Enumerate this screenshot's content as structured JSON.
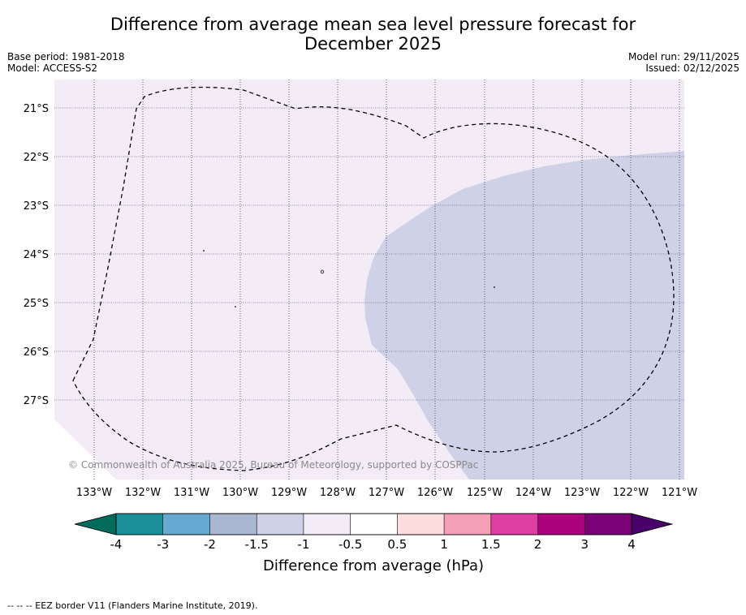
{
  "title_line1": "Difference from average mean sea level pressure forecast for",
  "title_line2": "December 2025",
  "base_period": "Base period: 1981-2018",
  "model": "Model: ACCESS-S2",
  "model_run": "Model run: 29/11/2025",
  "issued": "Issued: 02/12/2025",
  "lat_labels": [
    "21°S",
    "22°S",
    "23°S",
    "24°S",
    "25°S",
    "26°S",
    "27°S"
  ],
  "lon_labels": [
    "133°W",
    "132°W",
    "131°W",
    "130°W",
    "129°W",
    "128°W",
    "127°W",
    "126°W",
    "125°W",
    "124°W",
    "123°W",
    "122°W",
    "121°W"
  ],
  "copyright": "© Commonwealth of Australia 2025, Bureau of Meteorology, supported by COSPPac",
  "colorbar": {
    "label": "Difference from average (hPa)",
    "ticks": [
      "-4",
      "-3",
      "-2",
      "-1.5",
      "-1",
      "-0.5",
      "0.5",
      "1",
      "1.5",
      "2",
      "3",
      "4"
    ],
    "colors": [
      "#1b9099",
      "#67aad1",
      "#a9b7d1",
      "#cfd1e6",
      "#f3ecf6",
      "#ffffff",
      "#fdddde",
      "#f69fb9",
      "#de3ea1",
      "#ad017e",
      "#7a0177"
    ],
    "under_color": "#016c59",
    "over_color": "#49006a"
  },
  "map_colors": {
    "background_class": "#f3ecf6",
    "anomaly_region": "#cfd1e6"
  },
  "footnote": "--  --  -- EEZ border V11 (Flanders Marine Institute, 2019)."
}
